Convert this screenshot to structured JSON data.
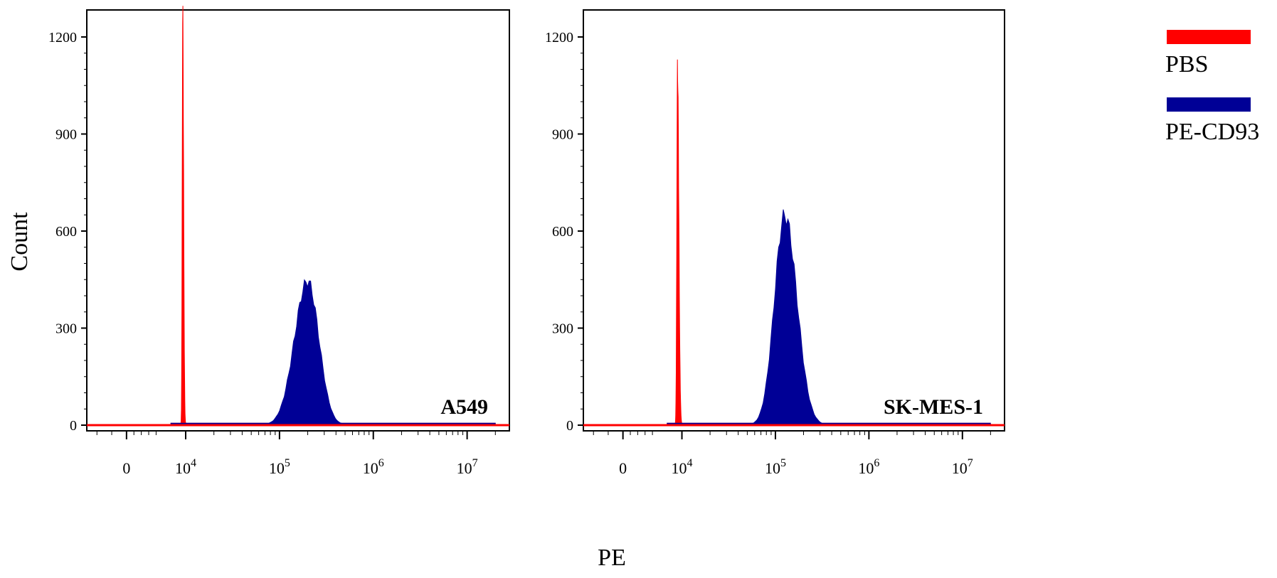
{
  "chart_data": {
    "type": "area",
    "x_scale": "biexponential (log above 10^4)",
    "ylabel": "Count",
    "xlabel": "PE",
    "ylim": [
      0,
      1200
    ],
    "yticks": [
      {
        "v": 0,
        "label": "0"
      },
      {
        "v": 300,
        "label": "300"
      },
      {
        "v": 600,
        "label": "600"
      },
      {
        "v": 900,
        "label": "900"
      },
      {
        "v": 1200,
        "label": "1200"
      }
    ],
    "xticks": [
      {
        "v": 0,
        "base": "0",
        "exp": ""
      },
      {
        "v": 4,
        "base": "10",
        "exp": "4"
      },
      {
        "v": 5,
        "base": "10",
        "exp": "5"
      },
      {
        "v": 6,
        "base": "10",
        "exp": "6"
      },
      {
        "v": 7,
        "base": "10",
        "exp": "7"
      }
    ],
    "series_colors": {
      "PBS": "#ff0000",
      "PE-CD93": "#000096"
    },
    "panels": [
      {
        "label": "A549",
        "series": [
          {
            "name": "PBS",
            "peak_x_log": 3.8,
            "peak_count": 1265,
            "sigma_left": 0.035,
            "sigma_right": 0.06,
            "color": "#ff0000"
          },
          {
            "name": "PE-CD93",
            "peak_x_log": 5.3,
            "peak_count": 445,
            "sigma_left": 0.14,
            "sigma_right": 0.12,
            "color": "#000096"
          }
        ]
      },
      {
        "label": "SK-MES-1",
        "series": [
          {
            "name": "PBS",
            "peak_x_log": 3.7,
            "peak_count": 1105,
            "sigma_left": 0.045,
            "sigma_right": 0.09,
            "color": "#ff0000"
          },
          {
            "name": "PE-CD93",
            "peak_x_log": 5.1,
            "peak_count": 648,
            "sigma_left": 0.11,
            "sigma_right": 0.13,
            "color": "#000096"
          }
        ]
      }
    ]
  },
  "legend": {
    "items": [
      {
        "label": "PBS",
        "color": "#ff0000"
      },
      {
        "label": "PE-CD93",
        "color": "#000096"
      }
    ]
  }
}
